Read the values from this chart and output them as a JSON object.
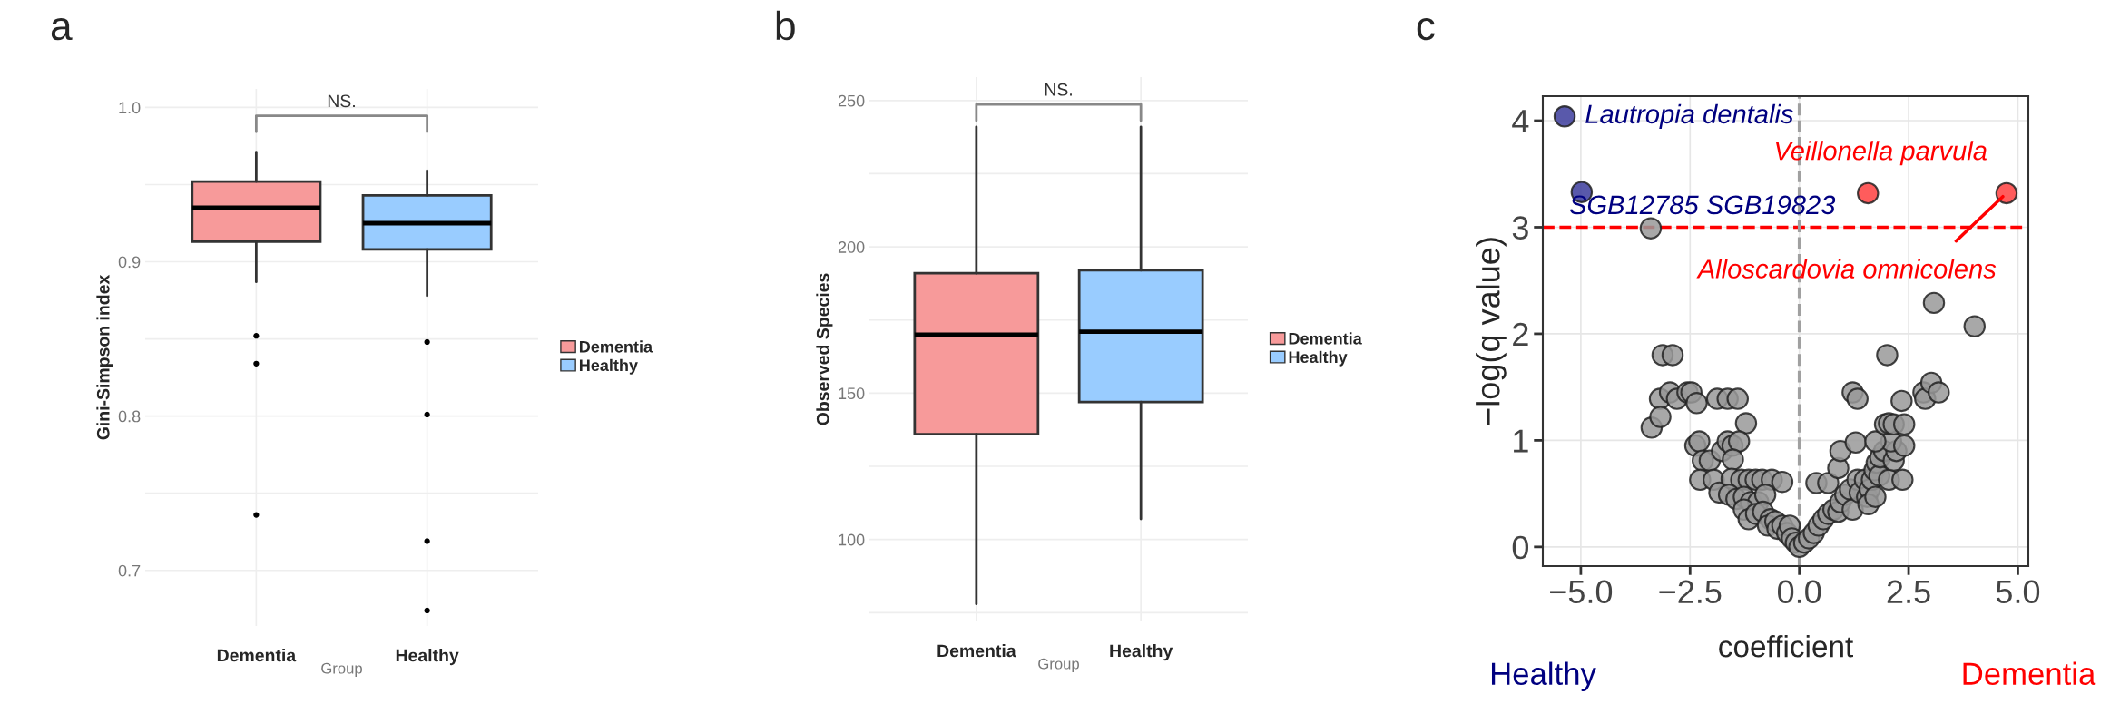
{
  "chart_data": [
    {
      "type": "box",
      "title": "a",
      "xlabel": "Group",
      "ylabel": "Gini-Simpson index",
      "categories": [
        "Dementia",
        "Healthy"
      ],
      "series": [
        {
          "name": "Dementia",
          "color": "#f79a9a",
          "boxes": [
            {
              "low": 0.887,
              "q1": 0.913,
              "median": 0.935,
              "q3": 0.952,
              "high": 0.971,
              "outliers": [
                0.852,
                0.834,
                0.736
              ]
            },
            null
          ]
        },
        {
          "name": "Healthy",
          "color": "#99ccff",
          "boxes": [
            null,
            {
              "low": 0.878,
              "q1": 0.908,
              "median": 0.925,
              "q3": 0.943,
              "high": 0.959,
              "outliers": [
                0.848,
                0.801,
                0.719,
                0.674
              ]
            }
          ]
        }
      ],
      "ylim": [
        0.664,
        1.012
      ],
      "yticks": [
        0.7,
        {
          "value": 0.75,
          "label": null
        },
        0.8,
        {
          "value": 0.85,
          "label": null
        },
        0.9,
        {
          "value": 0.95,
          "label": null
        },
        {
          "value": 1.0,
          "label": "1.0"
        }
      ],
      "grid": true,
      "legend": "right",
      "annotations": [
        "NS."
      ]
    },
    {
      "type": "box",
      "title": "b",
      "xlabel": "Group",
      "ylabel": "Observed Species",
      "categories": [
        "Dementia",
        "Healthy"
      ],
      "series": [
        {
          "name": "Dementia",
          "color": "#f79a9a",
          "boxes": [
            {
              "low": 78,
              "q1": 136,
              "median": 170,
              "q3": 191,
              "high": 241
            },
            null
          ]
        },
        {
          "name": "Healthy",
          "color": "#99ccff",
          "boxes": [
            null,
            {
              "low": 107,
              "q1": 147,
              "median": 171,
              "q3": 192,
              "high": 241
            }
          ]
        }
      ],
      "ylim": [
        72,
        258
      ],
      "yticks": [
        {
          "value": 75,
          "label": null
        },
        100,
        {
          "value": 125,
          "label": null
        },
        150,
        {
          "value": 175,
          "label": null
        },
        200,
        {
          "value": 225,
          "label": null
        },
        250
      ],
      "grid": true,
      "legend": "right",
      "annotations": [
        "NS."
      ]
    },
    {
      "type": "scatter",
      "title": "c",
      "xlabel": "coefficient",
      "ylabel": "−log(q value)",
      "marker": "circle",
      "series": [
        {
          "color": "#999999",
          "x": [
            -3.4,
            3.08,
            4.01,
            -3.13,
            -2.9,
            -3.19,
            -2.96,
            -2.8,
            -2.56,
            -2.47,
            -2.35,
            -3.38,
            -3.18,
            -1.88,
            -1.64,
            -1.41,
            -1.22,
            -2.38,
            -2.29,
            -2.21,
            -2.05,
            -2.27,
            -1.96,
            -1.83,
            -1.77,
            -1.64,
            -1.53,
            -1.38,
            -1.52,
            -1.55,
            -1.33,
            -1.16,
            -1.0,
            -0.85,
            -0.63,
            -0.39,
            -1.61,
            -1.44,
            -1.27,
            -1.11,
            -0.94,
            -0.78,
            -1.27,
            -1.16,
            -0.99,
            -0.83,
            -0.66,
            -0.72,
            -0.55,
            -0.5,
            -0.39,
            -0.28,
            -0.22,
            -0.17,
            -0.08,
            0,
            0.11,
            0.22,
            0.33,
            0.44,
            0.39,
            0.66,
            0.55,
            0.66,
            0.78,
            0.89,
            0.94,
            0.89,
            0.94,
            1.05,
            1.16,
            1.22,
            1.33,
            1.38,
            1.5,
            1.55,
            1.61,
            1.58,
            1.66,
            1.72,
            1.74,
            1.77,
            1.83,
            1.85,
            1.94,
            2.05,
            2.16,
            2.22,
            2.1,
            2.4,
            2.36,
            1.29,
            1.74,
            1.22,
            1.33,
            1.96,
            2.05,
            2.16,
            2.4,
            2.01,
            2.34,
            2.84,
            2.88,
            3.02,
            3.19
          ],
          "values": [
            2.99,
            2.29,
            2.07,
            1.8,
            1.8,
            1.39,
            1.45,
            1.39,
            1.45,
            1.45,
            1.35,
            1.12,
            1.22,
            1.39,
            1.39,
            1.39,
            1.16,
            0.95,
            0.99,
            0.81,
            0.81,
            0.63,
            0.63,
            0.51,
            0.9,
            0.99,
            0.95,
            0.99,
            0.82,
            0.64,
            0.63,
            0.63,
            0.63,
            0.63,
            0.63,
            0.61,
            0.49,
            0.45,
            0.47,
            0.42,
            0.42,
            0.49,
            0.35,
            0.26,
            0.31,
            0.33,
            0.26,
            0.2,
            0.24,
            0.17,
            0.2,
            0.13,
            0.2,
            0.08,
            0.04,
            0,
            0.04,
            0.08,
            0.13,
            0.2,
            0.6,
            0.6,
            0.26,
            0.31,
            0.35,
            0.33,
            0.42,
            0.74,
            0.9,
            0.49,
            0.54,
            0.35,
            0.63,
            0.51,
            0.63,
            0.47,
            0.54,
            0.4,
            0.63,
            0.72,
            0.47,
            0.79,
            0.67,
            0.84,
            0.9,
            0.63,
            0.81,
            0.9,
            0.99,
            0.95,
            0.63,
            0.98,
            0.99,
            1.45,
            1.39,
            1.15,
            1.16,
            1.15,
            1.15,
            1.8,
            1.37,
            1.45,
            1.39,
            1.54,
            1.45
          ]
        },
        {
          "color": "#3c3c9c",
          "x": [
            -5.37,
            -4.98
          ],
          "values": [
            4.04,
            3.33
          ]
        },
        {
          "color": "#ff4040",
          "x": [
            1.57,
            4.74
          ],
          "values": [
            3.32,
            3.32
          ]
        }
      ],
      "xlim": [
        -5.87,
        5.24
      ],
      "ylim": [
        -0.18,
        4.23
      ],
      "xticks": [
        {
          "value": -5,
          "label": "−5.0"
        },
        {
          "value": -2.5,
          "label": "−2.5"
        },
        {
          "value": 0,
          "label": "0.0"
        },
        {
          "value": 2.5,
          "label": "2.5"
        },
        {
          "value": 5,
          "label": "5.0"
        }
      ],
      "yticks": [
        0,
        1,
        2,
        3,
        4
      ],
      "grid": true,
      "ref_lines": [
        {
          "axis": "y",
          "value": 3,
          "color": "#ff0000",
          "line_style": "dashed"
        },
        {
          "axis": "x",
          "value": 0,
          "color": "#a0a0a0",
          "line_style": "dashed"
        }
      ],
      "annotations": [
        {
          "text": "Lautropia dentalis",
          "x": -5.37,
          "y": 4.04
        },
        {
          "text": "SGB12785 SGB19823",
          "x": -4.98,
          "y": 3.33
        },
        {
          "text": "Veillonella parvula",
          "x": 1.57,
          "y": 3.32
        },
        {
          "text": "Alloscardovia omnicolens",
          "x": 4.74,
          "y": 3.32
        },
        "Healthy",
        "Dementia"
      ]
    }
  ]
}
